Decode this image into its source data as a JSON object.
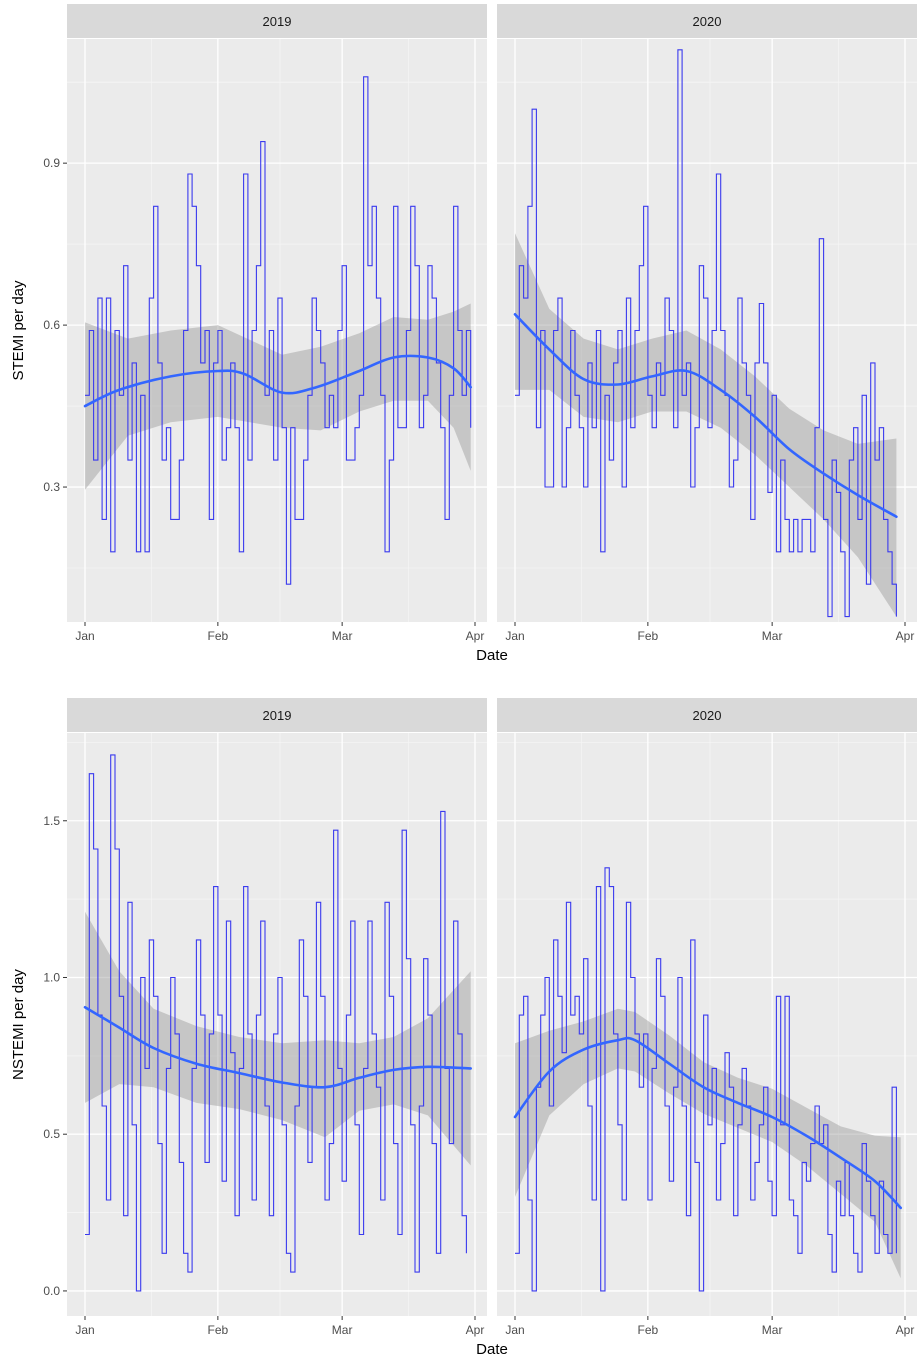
{
  "chart_data": [
    {
      "type": "line",
      "ylabel": "STEMI per day",
      "xlabel": "Date",
      "x_ticks": [
        "Jan",
        "Feb",
        "Mar",
        "Apr"
      ],
      "x_tick_dates": [
        "2000-01-01",
        "2000-02-01",
        "2000-03-01",
        "2000-04-01"
      ],
      "xlim": [
        "2000-01-01",
        "2000-04-01"
      ],
      "y_ticks": [
        "0.3",
        "0.6",
        "0.9"
      ],
      "y_tick_values": [
        0.3,
        0.6,
        0.9
      ],
      "ylim": [
        0.05,
        1.13
      ],
      "grid": true,
      "facets": [
        {
          "label": "2019",
          "raw": [
            0.47,
            0.59,
            0.35,
            0.65,
            0.24,
            0.65,
            0.18,
            0.59,
            0.47,
            0.71,
            0.35,
            0.53,
            0.18,
            0.47,
            0.18,
            0.65,
            0.82,
            0.53,
            0.35,
            0.41,
            0.24,
            0.24,
            0.35,
            0.59,
            0.88,
            0.82,
            0.71,
            0.53,
            0.59,
            0.24,
            0.53,
            0.59,
            0.35,
            0.41,
            0.53,
            0.41,
            0.18,
            0.88,
            0.35,
            0.59,
            0.71,
            0.94,
            0.47,
            0.59,
            0.35,
            0.65,
            0.41,
            0.12,
            0.41,
            0.24,
            0.24,
            0.35,
            0.47,
            0.65,
            0.59,
            0.53,
            0.41,
            0.47,
            0.41,
            0.59,
            0.71,
            0.35,
            0.35,
            0.41,
            0.47,
            1.06,
            0.71,
            0.82,
            0.65,
            0.47,
            0.18,
            0.35,
            0.82,
            0.41,
            0.41,
            0.59,
            0.82,
            0.71,
            0.41,
            0.47,
            0.71,
            0.65,
            0.53,
            0.41,
            0.24,
            0.47,
            0.82,
            0.59,
            0.47,
            0.59,
            0.41
          ],
          "smooth": [
            [
              0,
              0.45
            ],
            [
              8,
              0.48
            ],
            [
              20,
              0.505
            ],
            [
              31,
              0.515
            ],
            [
              37,
              0.51
            ],
            [
              46,
              0.475
            ],
            [
              54,
              0.485
            ],
            [
              64,
              0.515
            ],
            [
              72,
              0.54
            ],
            [
              80,
              0.54
            ],
            [
              86,
              0.52
            ],
            [
              90,
              0.485
            ]
          ],
          "band": [
            [
              0,
              0.295,
              0.605
            ],
            [
              10,
              0.395,
              0.575
            ],
            [
              20,
              0.42,
              0.59
            ],
            [
              31,
              0.43,
              0.6
            ],
            [
              46,
              0.41,
              0.545
            ],
            [
              55,
              0.405,
              0.56
            ],
            [
              64,
              0.44,
              0.585
            ],
            [
              72,
              0.46,
              0.615
            ],
            [
              80,
              0.46,
              0.61
            ],
            [
              86,
              0.41,
              0.625
            ],
            [
              90,
              0.33,
              0.64
            ]
          ]
        },
        {
          "label": "2020",
          "raw": [
            0.47,
            0.71,
            0.65,
            0.82,
            1.0,
            0.41,
            0.59,
            0.3,
            0.3,
            0.59,
            0.65,
            0.3,
            0.41,
            0.59,
            0.47,
            0.41,
            0.3,
            0.53,
            0.41,
            0.59,
            0.18,
            0.47,
            0.35,
            0.53,
            0.59,
            0.3,
            0.65,
            0.41,
            0.59,
            0.71,
            0.82,
            0.47,
            0.41,
            0.53,
            0.47,
            0.65,
            0.59,
            0.41,
            1.11,
            0.47,
            0.53,
            0.3,
            0.41,
            0.71,
            0.65,
            0.41,
            0.59,
            0.88,
            0.59,
            0.47,
            0.3,
            0.35,
            0.65,
            0.53,
            0.47,
            0.24,
            0.53,
            0.64,
            0.53,
            0.29,
            0.47,
            0.18,
            0.35,
            0.24,
            0.18,
            0.24,
            0.18,
            0.24,
            0.24,
            0.18,
            0.41,
            0.76,
            0.24,
            0.06,
            0.35,
            0.29,
            0.18,
            0.06,
            0.35,
            0.41,
            0.24,
            0.47,
            0.12,
            0.53,
            0.35,
            0.41,
            0.24,
            0.18,
            0.12,
            0.06
          ],
          "smooth": [
            [
              0,
              0.62
            ],
            [
              8,
              0.555
            ],
            [
              16,
              0.5
            ],
            [
              24,
              0.49
            ],
            [
              32,
              0.505
            ],
            [
              40,
              0.515
            ],
            [
              48,
              0.48
            ],
            [
              56,
              0.43
            ],
            [
              64,
              0.37
            ],
            [
              72,
              0.325
            ],
            [
              80,
              0.285
            ],
            [
              89,
              0.245
            ]
          ],
          "band": [
            [
              0,
              0.48,
              0.77
            ],
            [
              8,
              0.48,
              0.63
            ],
            [
              16,
              0.43,
              0.575
            ],
            [
              24,
              0.42,
              0.555
            ],
            [
              32,
              0.44,
              0.575
            ],
            [
              40,
              0.44,
              0.59
            ],
            [
              48,
              0.41,
              0.555
            ],
            [
              56,
              0.36,
              0.505
            ],
            [
              64,
              0.3,
              0.445
            ],
            [
              72,
              0.24,
              0.405
            ],
            [
              80,
              0.17,
              0.38
            ],
            [
              89,
              0.06,
              0.39
            ]
          ]
        }
      ]
    },
    {
      "type": "line",
      "ylabel": "NSTEMI per day",
      "xlabel": "Date",
      "x_ticks": [
        "Jan",
        "Feb",
        "Mar",
        "Apr"
      ],
      "x_tick_dates": [
        "2000-01-01",
        "2000-02-01",
        "2000-03-01",
        "2000-04-01"
      ],
      "xlim": [
        "2000-01-01",
        "2000-04-01"
      ],
      "y_ticks": [
        "0.0",
        "0.5",
        "1.0",
        "1.5"
      ],
      "y_tick_values": [
        0.0,
        0.5,
        1.0,
        1.5
      ],
      "ylim": [
        -0.08,
        1.78
      ],
      "grid": true,
      "facets": [
        {
          "label": "2019",
          "raw": [
            0.18,
            1.65,
            1.41,
            0.88,
            0.59,
            0.29,
            1.71,
            1.41,
            0.94,
            0.24,
            1.24,
            0.53,
            0.0,
            1.0,
            0.71,
            1.12,
            0.94,
            0.47,
            0.12,
            0.71,
            1.0,
            0.82,
            0.41,
            0.12,
            0.06,
            0.71,
            1.12,
            0.88,
            0.41,
            0.82,
            1.29,
            0.88,
            0.35,
            1.18,
            0.76,
            0.24,
            0.71,
            1.29,
            0.82,
            0.29,
            0.88,
            1.18,
            0.59,
            0.24,
            0.82,
            1.0,
            0.53,
            0.12,
            0.06,
            0.59,
            1.12,
            0.94,
            0.41,
            0.65,
            1.24,
            0.94,
            0.29,
            0.47,
            1.47,
            0.71,
            0.35,
            0.88,
            1.18,
            0.53,
            0.18,
            0.71,
            1.18,
            0.82,
            0.65,
            0.29,
            1.24,
            0.94,
            0.47,
            0.18,
            1.47,
            1.06,
            0.53,
            0.06,
            0.59,
            1.06,
            0.88,
            0.47,
            0.12,
            1.53,
            0.71,
            0.47,
            1.18,
            0.82,
            0.24,
            0.12
          ],
          "smooth": [
            [
              0,
              0.905
            ],
            [
              8,
              0.84
            ],
            [
              16,
              0.775
            ],
            [
              26,
              0.725
            ],
            [
              36,
              0.695
            ],
            [
              46,
              0.665
            ],
            [
              56,
              0.65
            ],
            [
              64,
              0.68
            ],
            [
              72,
              0.705
            ],
            [
              80,
              0.715
            ],
            [
              90,
              0.71
            ]
          ],
          "band": [
            [
              0,
              0.6,
              1.21
            ],
            [
              8,
              0.66,
              1.02
            ],
            [
              16,
              0.65,
              0.9
            ],
            [
              26,
              0.6,
              0.845
            ],
            [
              36,
              0.58,
              0.81
            ],
            [
              46,
              0.545,
              0.79
            ],
            [
              56,
              0.49,
              0.8
            ],
            [
              64,
              0.575,
              0.79
            ],
            [
              72,
              0.595,
              0.81
            ],
            [
              80,
              0.56,
              0.87
            ],
            [
              90,
              0.4,
              1.02
            ]
          ]
        },
        {
          "label": "2020",
          "raw": [
            0.12,
            0.88,
            0.94,
            0.29,
            0.0,
            0.65,
            0.88,
            1.0,
            0.59,
            1.12,
            0.94,
            0.76,
            1.24,
            0.88,
            0.94,
            0.82,
            1.06,
            0.59,
            0.29,
            1.29,
            0.0,
            1.35,
            1.29,
            0.82,
            0.53,
            0.29,
            1.24,
            1.0,
            0.82,
            0.65,
            0.82,
            0.29,
            0.71,
            1.06,
            0.94,
            0.59,
            0.35,
            0.65,
            1.0,
            0.59,
            0.24,
            1.12,
            0.41,
            0.0,
            0.88,
            0.53,
            0.71,
            0.29,
            0.47,
            0.76,
            0.65,
            0.24,
            0.53,
            0.71,
            0.59,
            0.29,
            0.41,
            0.53,
            0.65,
            0.35,
            0.24,
            0.94,
            0.53,
            0.94,
            0.29,
            0.24,
            0.12,
            0.41,
            0.35,
            0.47,
            0.59,
            0.47,
            0.53,
            0.18,
            0.06,
            0.35,
            0.24,
            0.41,
            0.24,
            0.12,
            0.06,
            0.47,
            0.35,
            0.24,
            0.12,
            0.35,
            0.18,
            0.12,
            0.65,
            0.12
          ],
          "smooth": [
            [
              0,
              0.555
            ],
            [
              8,
              0.7
            ],
            [
              16,
              0.77
            ],
            [
              24,
              0.8
            ],
            [
              28,
              0.8
            ],
            [
              36,
              0.725
            ],
            [
              44,
              0.65
            ],
            [
              52,
              0.6
            ],
            [
              60,
              0.555
            ],
            [
              68,
              0.495
            ],
            [
              76,
              0.425
            ],
            [
              84,
              0.35
            ],
            [
              90,
              0.265
            ]
          ],
          "band": [
            [
              0,
              0.3,
              0.79
            ],
            [
              8,
              0.56,
              0.83
            ],
            [
              16,
              0.66,
              0.86
            ],
            [
              24,
              0.71,
              0.9
            ],
            [
              28,
              0.7,
              0.89
            ],
            [
              36,
              0.63,
              0.815
            ],
            [
              44,
              0.565,
              0.73
            ],
            [
              52,
              0.52,
              0.68
            ],
            [
              60,
              0.475,
              0.645
            ],
            [
              68,
              0.4,
              0.585
            ],
            [
              76,
              0.31,
              0.525
            ],
            [
              84,
              0.22,
              0.495
            ],
            [
              90,
              0.04,
              0.49
            ]
          ]
        }
      ]
    }
  ]
}
